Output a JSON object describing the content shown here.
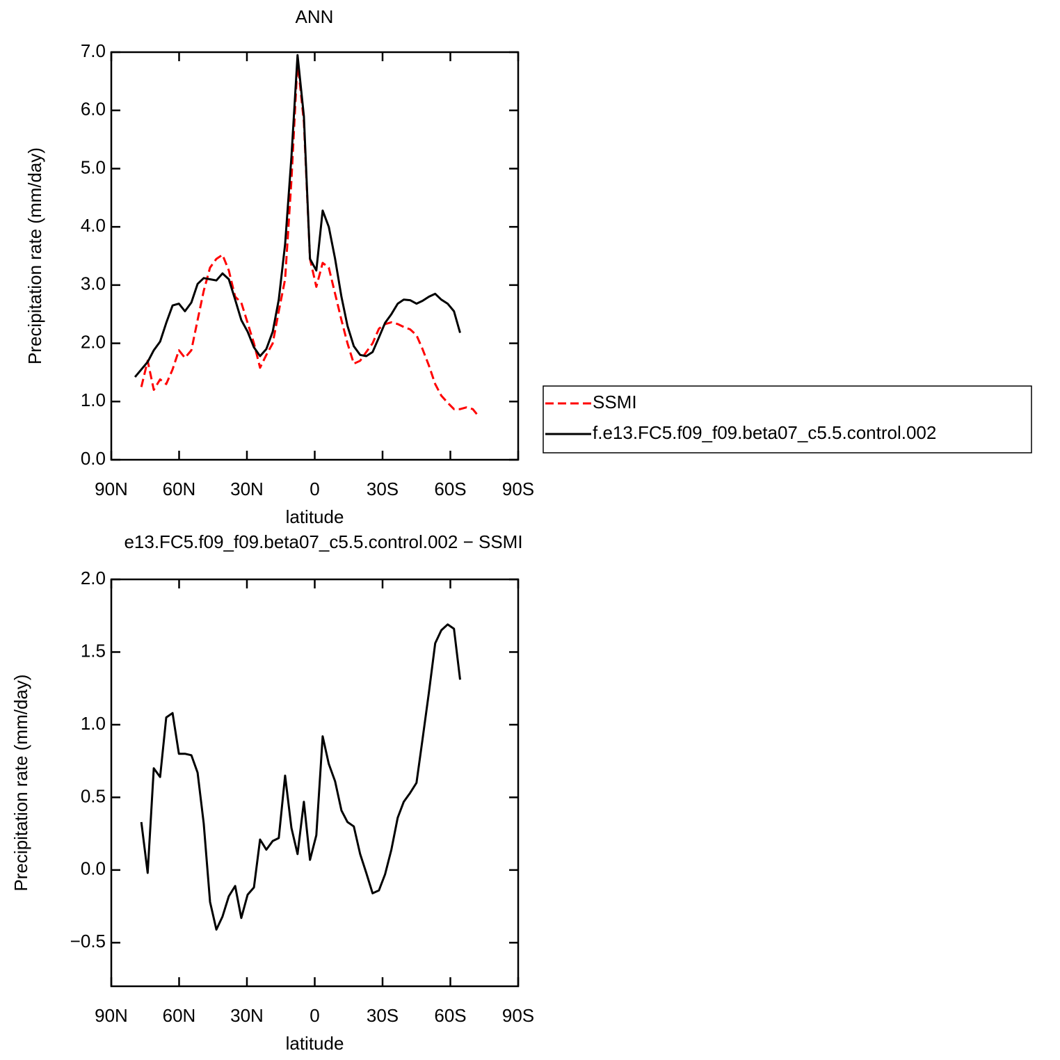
{
  "chart_data": [
    {
      "type": "line",
      "title": "ANN",
      "xlabel": "latitude",
      "ylabel": "Precipitation rate (mm/day)",
      "x": [
        79.5,
        76.7,
        73.9,
        71.2,
        68.4,
        65.7,
        62.9,
        60.1,
        57.4,
        54.6,
        51.8,
        49.1,
        46.3,
        43.5,
        40.8,
        38.0,
        35.2,
        32.5,
        29.7,
        26.9,
        24.2,
        21.4,
        18.6,
        15.9,
        13.1,
        10.3,
        7.6,
        4.8,
        2.1,
        -0.7,
        -3.5,
        -6.2,
        -9.0,
        -11.8,
        -14.5,
        -17.3,
        -20.1,
        -22.8,
        -25.6,
        -28.4,
        -31.1,
        -33.9,
        -36.7,
        -39.4,
        -42.2,
        -45.0,
        -47.7,
        -50.5,
        -53.3,
        -56.0,
        -58.8,
        -61.6,
        -64.3,
        -67.1,
        -69.9,
        -72.6
      ],
      "series": [
        {
          "name": "SSMI",
          "color": "#ff0000",
          "linestyle": "dashed",
          "values": [
            null,
            1.25,
            1.7,
            1.2,
            1.38,
            1.3,
            1.55,
            1.88,
            1.75,
            1.88,
            2.4,
            2.9,
            3.3,
            3.45,
            3.52,
            3.25,
            2.8,
            2.7,
            2.35,
            2.0,
            1.58,
            1.8,
            2.0,
            2.55,
            3.1,
            4.8,
            6.85,
            5.8,
            3.45,
            2.97,
            3.38,
            3.3,
            2.85,
            2.4,
            2.0,
            1.65,
            1.7,
            1.85,
            2.0,
            2.25,
            2.33,
            2.36,
            2.33,
            2.28,
            2.24,
            2.14,
            1.9,
            1.62,
            1.3,
            1.1,
            0.98,
            0.87,
            0.87,
            0.9,
            0.87,
            0.74
          ]
        },
        {
          "name": "f.e13.FC5.f09_f09.beta07_c5.5.control.002",
          "color": "#000000",
          "linestyle": "solid",
          "values": [
            1.42,
            1.55,
            1.68,
            1.88,
            2.03,
            2.35,
            2.65,
            2.68,
            2.55,
            2.7,
            3.02,
            3.12,
            3.1,
            3.08,
            3.2,
            3.1,
            2.75,
            2.4,
            2.2,
            1.93,
            1.78,
            1.9,
            2.2,
            2.75,
            3.7,
            5.2,
            6.95,
            5.9,
            3.45,
            3.25,
            4.28,
            4.0,
            3.45,
            2.8,
            2.3,
            1.95,
            1.8,
            1.78,
            1.85,
            2.1,
            2.35,
            2.5,
            2.68,
            2.75,
            2.74,
            2.68,
            2.73,
            2.8,
            2.85,
            2.75,
            2.68,
            2.55,
            2.18,
            null,
            null,
            null
          ]
        }
      ],
      "xlim": [
        90,
        -90
      ],
      "xticks": [
        {
          "value": 90,
          "label": "90N"
        },
        {
          "value": 60,
          "label": "60N"
        },
        {
          "value": 30,
          "label": "30N"
        },
        0,
        {
          "value": -30,
          "label": "30S"
        },
        {
          "value": -60,
          "label": "60S"
        },
        {
          "value": -90,
          "label": "90S"
        }
      ],
      "ylim": [
        0,
        7
      ],
      "yticks": [
        {
          "value": 0,
          "label": "0.0"
        },
        {
          "value": 1,
          "label": "1.0"
        },
        {
          "value": 2,
          "label": "2.0"
        },
        {
          "value": 3,
          "label": "3.0"
        },
        {
          "value": 4,
          "label": "4.0"
        },
        {
          "value": 5,
          "label": "5.0"
        },
        {
          "value": 6,
          "label": "6.0"
        },
        {
          "value": 7,
          "label": "7.0"
        }
      ],
      "legend": "right"
    },
    {
      "type": "line",
      "title": "e13.FC5.f09_f09.beta07_c5.5.control.002 − SSMI",
      "xlabel": "latitude",
      "ylabel": "Precipitation rate (mm/day)",
      "x": [
        79.5,
        76.7,
        73.9,
        71.2,
        68.4,
        65.7,
        62.9,
        60.1,
        57.4,
        54.6,
        51.8,
        49.1,
        46.3,
        43.5,
        40.8,
        38.0,
        35.2,
        32.5,
        29.7,
        26.9,
        24.2,
        21.4,
        18.6,
        15.9,
        13.1,
        10.3,
        7.6,
        4.8,
        2.1,
        -0.7,
        -3.5,
        -6.2,
        -9.0,
        -11.8,
        -14.5,
        -17.3,
        -20.1,
        -22.8,
        -25.6,
        -28.4,
        -31.1,
        -33.9,
        -36.7,
        -39.4,
        -42.2,
        -45.0,
        -47.7,
        -50.5,
        -53.3,
        -56.0,
        -58.8,
        -61.6,
        -64.3,
        -67.1,
        -69.9,
        -72.6
      ],
      "values": [
        null,
        0.33,
        -0.02,
        0.7,
        0.64,
        1.05,
        1.08,
        0.8,
        0.8,
        0.79,
        0.67,
        0.32,
        -0.22,
        -0.41,
        -0.32,
        -0.18,
        -0.11,
        -0.33,
        -0.17,
        -0.12,
        0.21,
        0.14,
        0.2,
        0.22,
        0.65,
        0.29,
        0.11,
        0.47,
        0.07,
        0.24,
        0.92,
        0.73,
        0.61,
        0.41,
        0.33,
        0.3,
        0.11,
        -0.02,
        -0.16,
        -0.14,
        -0.03,
        0.14,
        0.36,
        0.47,
        0.53,
        0.6,
        0.9,
        1.22,
        1.56,
        1.65,
        1.69,
        1.66,
        1.31,
        null,
        null,
        null
      ],
      "color": "#000000",
      "xlim": [
        90,
        -90
      ],
      "xticks": [
        {
          "value": 90,
          "label": "90N"
        },
        {
          "value": 60,
          "label": "60N"
        },
        {
          "value": 30,
          "label": "30N"
        },
        0,
        {
          "value": -30,
          "label": "30S"
        },
        {
          "value": -60,
          "label": "60S"
        },
        {
          "value": -90,
          "label": "90S"
        }
      ],
      "ylim": [
        -0.8,
        2.0
      ],
      "yticks": [
        {
          "value": -0.5,
          "label": "−0.5"
        },
        {
          "value": 0,
          "label": "0.0"
        },
        {
          "value": 0.5,
          "label": "0.5"
        },
        {
          "value": 1.0,
          "label": "1.0"
        },
        {
          "value": 1.5,
          "label": "1.5"
        },
        {
          "value": 2.0,
          "label": "2.0"
        }
      ]
    }
  ]
}
